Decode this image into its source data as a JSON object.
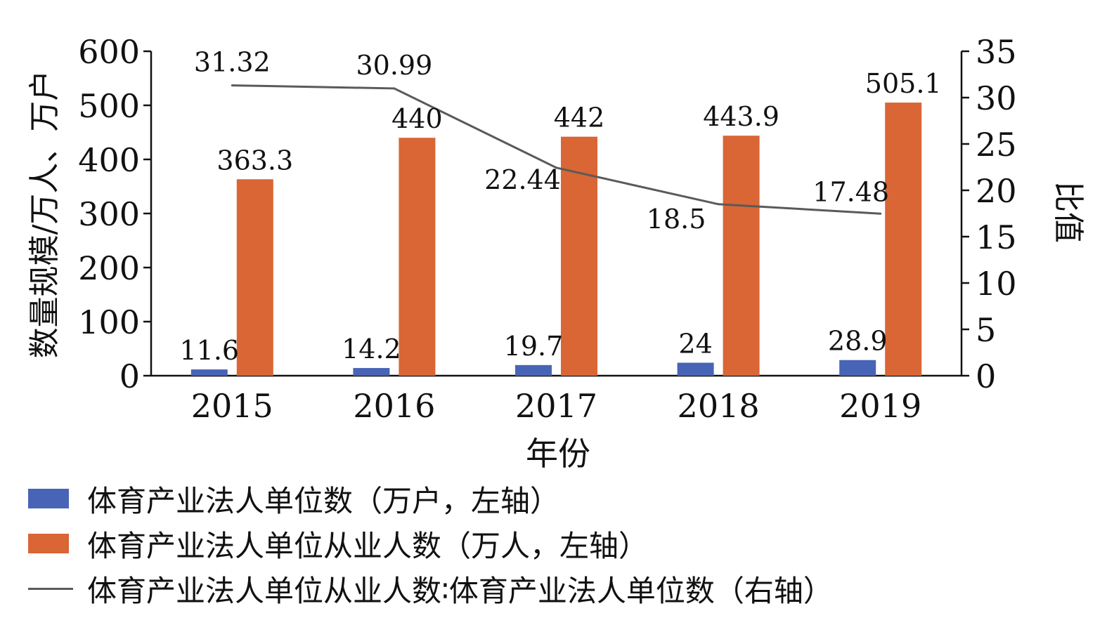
{
  "chart_data": {
    "type": "bar",
    "categories": [
      "2015",
      "2016",
      "2017",
      "2018",
      "2019"
    ],
    "xlabel": "年份",
    "ylabel_left": "数量规模/万人、万户",
    "ylabel_right": "比值",
    "ylim_left": [
      0,
      600
    ],
    "yticks_left": [
      "0",
      "100",
      "200",
      "300",
      "400",
      "500",
      "600"
    ],
    "ylim_right": [
      0,
      35
    ],
    "yticks_right": [
      "0",
      "5",
      "10",
      "15",
      "20",
      "25",
      "30",
      "35"
    ],
    "grid": false,
    "legend_position": "bottom",
    "series": [
      {
        "name": "体育产业法人单位数（万户，左轴）",
        "kind": "bar",
        "axis": "left",
        "color": "#4864b6",
        "values": [
          11.6,
          14.2,
          19.7,
          24,
          28.9
        ],
        "labels": [
          "11.6",
          "14.2",
          "19.7",
          "24",
          "28.9"
        ]
      },
      {
        "name": "体育产业法人单位从业人数（万人，左轴）",
        "kind": "bar",
        "axis": "left",
        "color": "#d96634",
        "values": [
          363.3,
          440,
          442,
          443.9,
          505.1
        ],
        "labels": [
          "363.3",
          "440",
          "442",
          "443.9",
          "505.1"
        ]
      },
      {
        "name": "体育产业法人单位从业人数∶体育产业法人单位数（右轴）",
        "kind": "line",
        "axis": "right",
        "color": "#5a5a5a",
        "values": [
          31.32,
          30.99,
          22.44,
          18.5,
          17.48
        ],
        "labels": [
          "31.32",
          "30.99",
          "22.44",
          "18.5",
          "17.48"
        ]
      }
    ]
  }
}
